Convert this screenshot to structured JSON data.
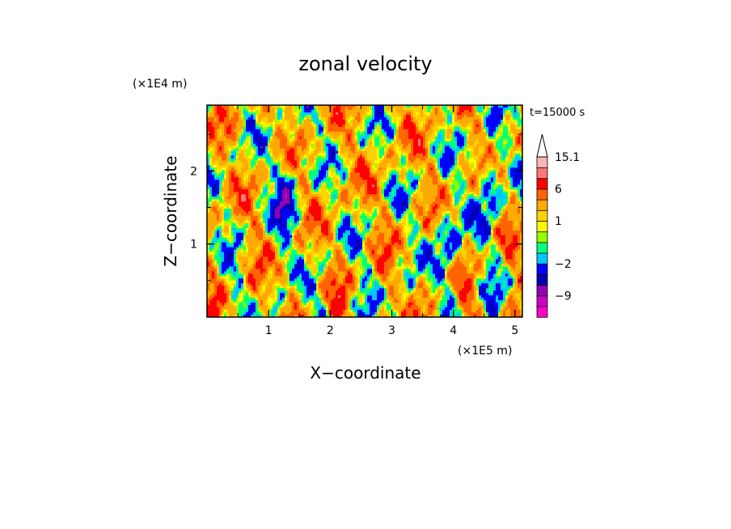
{
  "chart_data": {
    "type": "heatmap",
    "title": "zonal velocity",
    "xlabel": "X−coordinate",
    "ylabel": "Z−coordinate",
    "x_unit": "(×1E5 m)",
    "y_unit": "(×1E4 m)",
    "time_label": "t=15000 s",
    "xlim": [
      0,
      5.12
    ],
    "ylim": [
      0,
      2.9
    ],
    "x_ticks": [
      {
        "value": 1,
        "label": "1"
      },
      {
        "value": 2,
        "label": "2"
      },
      {
        "value": 3,
        "label": "3"
      },
      {
        "value": 4,
        "label": "4"
      },
      {
        "value": 5,
        "label": "5"
      }
    ],
    "y_ticks": [
      {
        "value": 1,
        "label": "1"
      },
      {
        "value": 2,
        "label": "2"
      }
    ],
    "colorbar": {
      "labels": [
        {
          "value": 15.1,
          "label": "15.1"
        },
        {
          "value": 6,
          "label": "6"
        },
        {
          "value": 1,
          "label": "1"
        },
        {
          "value": -2,
          "label": "−2"
        },
        {
          "value": -9,
          "label": "−9"
        }
      ],
      "bins": [
        {
          "color": "#ff00c8",
          "lo": -99,
          "hi": -13
        },
        {
          "color": "#c800c8",
          "lo": -13,
          "hi": -9
        },
        {
          "color": "#9600b4",
          "lo": -9,
          "hi": -6
        },
        {
          "color": "#0000b4",
          "lo": -6,
          "hi": -4
        },
        {
          "color": "#0000ff",
          "lo": -4,
          "hi": -2
        },
        {
          "color": "#00c8ff",
          "lo": -2,
          "hi": -1
        },
        {
          "color": "#00ff7f",
          "lo": -1,
          "hi": 0
        },
        {
          "color": "#96ff00",
          "lo": 0,
          "hi": 0.5
        },
        {
          "color": "#ffff00",
          "lo": 0.5,
          "hi": 1
        },
        {
          "color": "#ffd200",
          "lo": 1,
          "hi": 2
        },
        {
          "color": "#ffaa00",
          "lo": 2,
          "hi": 4
        },
        {
          "color": "#ff6400",
          "lo": 4,
          "hi": 6
        },
        {
          "color": "#ff0000",
          "lo": 6,
          "hi": 9
        },
        {
          "color": "#ff7878",
          "lo": 9,
          "hi": 12
        },
        {
          "color": "#ffb4b4",
          "lo": 12,
          "hi": 15.1
        }
      ],
      "overflow_color": "#ffffff"
    }
  }
}
